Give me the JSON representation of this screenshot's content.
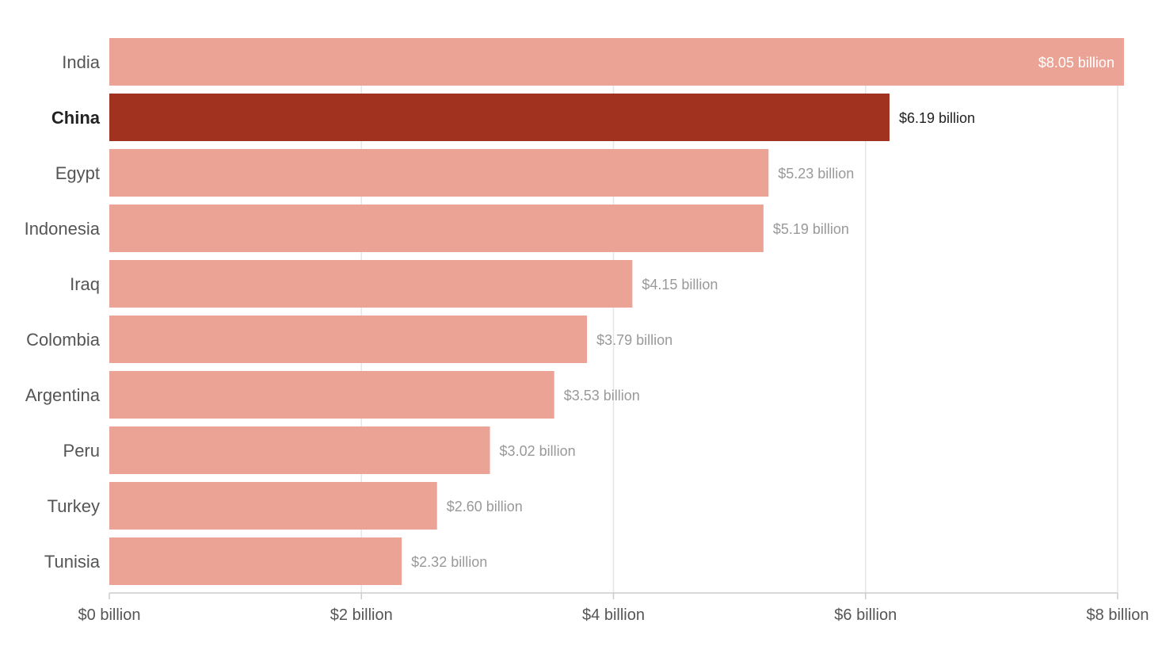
{
  "chart_data": {
    "type": "bar",
    "orientation": "horizontal",
    "categories": [
      "India",
      "China",
      "Egypt",
      "Indonesia",
      "Iraq",
      "Colombia",
      "Argentina",
      "Peru",
      "Turkey",
      "Tunisia"
    ],
    "values": [
      8.05,
      6.19,
      5.23,
      5.19,
      4.15,
      3.79,
      3.53,
      3.02,
      2.6,
      2.32
    ],
    "value_labels": [
      "$8.05 billion",
      "$6.19 billion",
      "$5.23 billion",
      "$5.19 billion",
      "$4.15 billion",
      "$3.79 billion",
      "$3.53 billion",
      "$3.02 billion",
      "$2.60 billion",
      "$2.32 billion"
    ],
    "highlight": "China",
    "xlim": [
      0,
      8
    ],
    "x_ticks": [
      0,
      2,
      4,
      6,
      8
    ],
    "x_tick_labels": [
      "$0 billion",
      "$2 billion",
      "$4 billion",
      "$6 billion",
      "$8 billion"
    ],
    "grid": true,
    "colors": {
      "bar": "#eba395",
      "highlight_bar": "#a0321f",
      "label_outside": "#999999",
      "label_highlight": "#222222",
      "label_inside": "#ffffff"
    }
  }
}
